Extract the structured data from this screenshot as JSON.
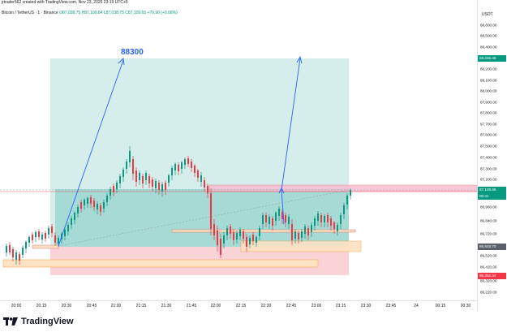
{
  "header": {
    "credit": "jrtrader562 created with TradingView.com, Nov 23, 2025 23:19 UTC+5"
  },
  "symbol": {
    "name": "Bitcoin / TetherUS · 1 · Binance",
    "ohlc": "O87,038.75  H87,109.84  L87,038.75  C87,109.65  +70.90 (+0.08%)"
  },
  "price_axis": {
    "currency": "USDT",
    "labels": [
      "88,600.00",
      "88,500.00",
      "88,400.00",
      "88,200.00",
      "88,100.00",
      "88,000.00",
      "87,900.00",
      "87,800.00",
      "87,700.00",
      "87,600.00",
      "87,500.00",
      "87,400.00",
      "87,300.00",
      "87,200.00",
      "87,080.00",
      "86,960.00",
      "86,840.00",
      "86,720.00",
      "86,520.00",
      "86,420.00",
      "86,320.00",
      "86,220.00"
    ],
    "tag_target": "88,296.45",
    "tag_current_price": "87,109.65",
    "tag_current_time": "00:41",
    "tag_entry": "86,603.70",
    "tag_stop": "86,352.44"
  },
  "time_axis": {
    "labels": [
      "20:00",
      "20:15",
      "20:30",
      "20:45",
      "21:00",
      "21:15",
      "21:30",
      "21:45",
      "22:00",
      "22:15",
      "22:30",
      "22:45",
      "23:00",
      "23:15",
      "23:30",
      "23:45",
      "24",
      "00:15",
      "00:30"
    ]
  },
  "annotation": {
    "target_text": "88300"
  },
  "footer": {
    "brand": "TradingView"
  },
  "colors": {
    "up": "#089981",
    "down": "#f23645",
    "profit_zone": "#b2dfdb",
    "loss_zone": "#f8c8cc",
    "arrow": "#2962ff",
    "target_tag": "#089981",
    "stop_tag": "#f23645",
    "entry_tag": "#5d606b"
  }
}
